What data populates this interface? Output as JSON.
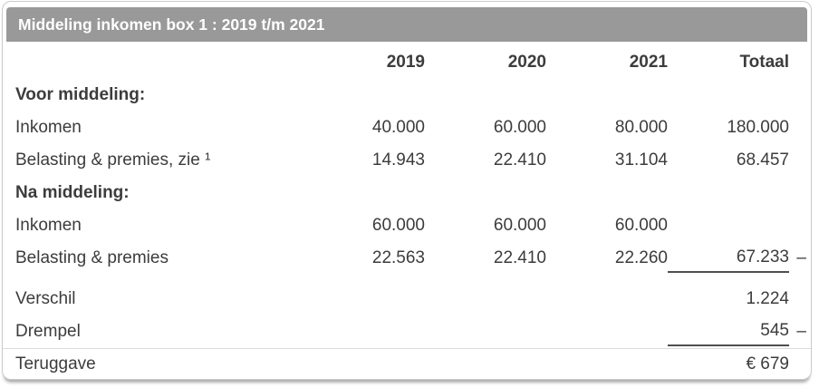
{
  "header": {
    "title": "Middeling inkomen box 1 : 2019 t/m 2021"
  },
  "colors": {
    "header_bar_bg": "#999999",
    "header_bar_text": "#ffffff",
    "body_text": "#3c3c3c",
    "card_border": "#cbcbcb",
    "sum_line": "#4f4f4f",
    "row_separator": "#dcdcdc"
  },
  "table": {
    "columns": [
      "2019",
      "2020",
      "2021",
      "Totaal"
    ],
    "rows": [
      {
        "label": "Voor middeling:",
        "style": "section"
      },
      {
        "label": "Inkomen",
        "values": [
          "40.000",
          "60.000",
          "80.000",
          "180.000"
        ]
      },
      {
        "label": "Belasting & premies, zie ¹",
        "values": [
          "14.943",
          "22.410",
          "31.104",
          "68.457"
        ]
      },
      {
        "label": "Na middeling:",
        "style": "section"
      },
      {
        "label": "Inkomen",
        "values": [
          "60.000",
          "60.000",
          "60.000",
          ""
        ]
      },
      {
        "label": "Belasting & premies",
        "values": [
          "22.563",
          "22.410",
          "22.260",
          "67.233"
        ],
        "operator": "–",
        "underline_total": true
      },
      {
        "label": "Verschil",
        "values": [
          "",
          "",
          "",
          "1.224"
        ]
      },
      {
        "label": "Drempel",
        "values": [
          "",
          "",
          "",
          "545"
        ],
        "operator": "–",
        "underline_total": true
      },
      {
        "label": "Teruggave",
        "values": [
          "",
          "",
          "",
          "€ 679"
        ],
        "separator_above": true
      }
    ]
  }
}
